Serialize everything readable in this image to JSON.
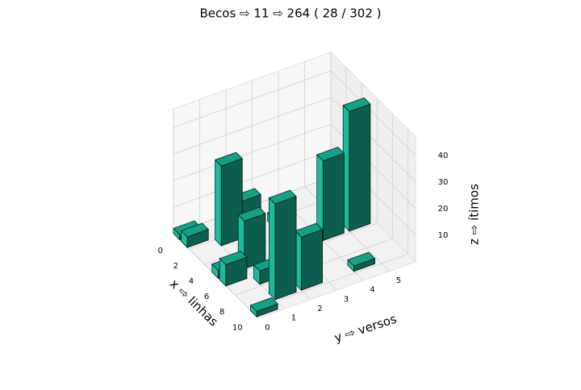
{
  "chart_data": {
    "type": "bar3d",
    "title": "Becos ⇨ 11 ⇨ 264 ( 28 / 302 )",
    "xlabel": "x ⇨ linhas",
    "ylabel": "y ⇨ versos",
    "zlabel": "z ⇨ ítimos",
    "color": "#1abc9c",
    "x": [
      0,
      1,
      2,
      1,
      2,
      5,
      5,
      6,
      7,
      10,
      9,
      9,
      5,
      5,
      9
    ],
    "y": [
      0,
      0,
      1,
      2,
      3,
      0,
      1,
      0,
      1,
      0,
      1,
      2,
      4,
      5,
      4
    ],
    "z": [
      2,
      4,
      30,
      10,
      3,
      3,
      18,
      8,
      5,
      2,
      36,
      20,
      30,
      45,
      2
    ],
    "xlim": [
      0,
      11
    ],
    "ylim": [
      0,
      6
    ],
    "zlim": [
      0,
      47
    ],
    "xticks": [
      0,
      2,
      4,
      6,
      8,
      10
    ],
    "yticks": [
      0,
      1,
      2,
      3,
      4,
      5
    ],
    "zticks": [
      10,
      20,
      30,
      40
    ],
    "grid": true
  }
}
